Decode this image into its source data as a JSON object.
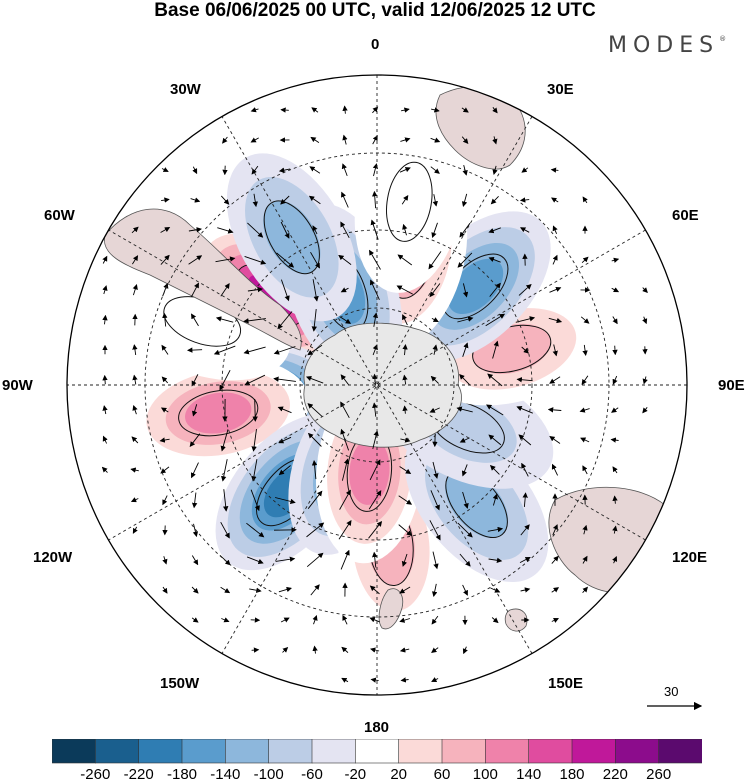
{
  "title": "Base 06/06/2025 00 UTC, valid 12/06/2025 12 UTC",
  "brand": "MODES",
  "brand_mark": "®",
  "longitude_labels": {
    "lon_0": "0",
    "lon_30e": "30E",
    "lon_60e": "60E",
    "lon_90e": "90E",
    "lon_120e": "120E",
    "lon_150e": "150E",
    "lon_180": "180",
    "lon_150w": "150W",
    "lon_120w": "120W",
    "lon_90w": "90W",
    "lon_60w": "60W",
    "lon_30w": "30W"
  },
  "reference_vector": {
    "value": "30"
  },
  "colorbar": {
    "labels": [
      "-260",
      "-220",
      "-180",
      "-140",
      "-100",
      "-60",
      "-20",
      "20",
      "60",
      "100",
      "140",
      "180",
      "220",
      "260"
    ],
    "colors": [
      "#0b3a5a",
      "#1a5f8e",
      "#2f7db3",
      "#5a9ccd",
      "#8db7dc",
      "#bccde6",
      "#e4e4f2",
      "#ffffff",
      "#fbdad8",
      "#f6b3bd",
      "#ef82aa",
      "#e04c9f",
      "#c0189a",
      "#8c0c8c",
      "#5b0a6e"
    ]
  },
  "anomalies": [
    {
      "lon": -50,
      "lat": -45,
      "value": 240
    },
    {
      "lon": -95,
      "lat": -50,
      "value": -220
    },
    {
      "lon": -100,
      "lat": -38,
      "value": 140
    },
    {
      "lon": -140,
      "lat": -45,
      "value": -180
    },
    {
      "lon": -160,
      "lat": -62,
      "value": -160
    },
    {
      "lon": 175,
      "lat": -38,
      "value": 100
    },
    {
      "lon": -175,
      "lat": -62,
      "value": 140
    },
    {
      "lon": 140,
      "lat": -40,
      "value": -100
    },
    {
      "lon": 115,
      "lat": -58,
      "value": -60
    },
    {
      "lon": 75,
      "lat": -45,
      "value": 120
    },
    {
      "lon": 45,
      "lat": -45,
      "value": -140
    },
    {
      "lon": 15,
      "lat": -48,
      "value": 120
    },
    {
      "lon": -20,
      "lat": -58,
      "value": -160
    },
    {
      "lon": -30,
      "lat": -35,
      "value": -120
    },
    {
      "lon": 10,
      "lat": -30,
      "value": 40
    },
    {
      "lon": -70,
      "lat": -30,
      "value": 40
    }
  ]
}
